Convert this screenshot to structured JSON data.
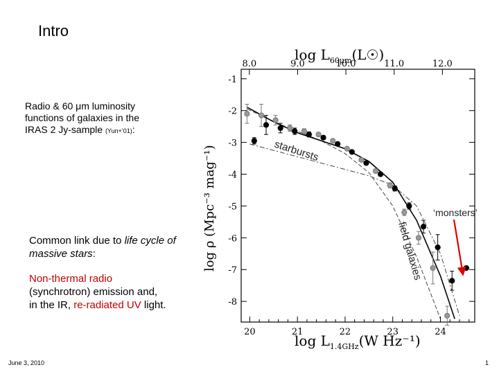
{
  "slide": {
    "title": "Intro",
    "intro_line1": "Radio & 60 μm luminosity",
    "intro_line2": "functions of galaxies in the",
    "intro_line3": "IRAS 2 Jy-sample",
    "intro_cite": "(Yun+’01)",
    "intro_end": ":",
    "common_pre": "Common link due to ",
    "common_em": "life cycle of massive stars",
    "common_post": ":",
    "nt_red1": "Non-thermal radio",
    "nt_mid": "(synchrotron) emission and,",
    "nt_pre": "in the IR, ",
    "nt_red2": "re-radiated UV",
    "nt_post": " light.",
    "footer_date": "June 3, 2010",
    "footer_page": "1",
    "accent_red": "#c00000"
  },
  "chart_data": {
    "type": "scatter",
    "top_xlabel": "log L60μm(L☉)",
    "top_xlabel_main": "log L",
    "top_xlabel_sub": "60μm",
    "top_xlabel_unit": "(L☉)",
    "top_ticks": [
      "8.0",
      "9.0",
      "10.0",
      "11.0",
      "12.0"
    ],
    "top_tick_values": [
      8.0,
      9.0,
      10.0,
      11.0,
      12.0
    ],
    "xlabel_main": "log L",
    "xlabel_sub": "1.4GHz",
    "xlabel_unit": "(W Hz⁻¹)",
    "ylabel": "log ρ (Mpc⁻³ mag⁻¹)",
    "xlim": [
      19.82,
      24.72
    ],
    "ylim": [
      -8.65,
      -0.7
    ],
    "x_ticks": [
      20,
      21,
      22,
      23,
      24
    ],
    "y_ticks": [
      -1,
      -2,
      -3,
      -4,
      -5,
      -6,
      -7,
      -8
    ],
    "x_tick_labels": [
      "20",
      "21",
      "22",
      "23",
      "24"
    ],
    "y_tick_labels": [
      "-1",
      "-2",
      "-3",
      "-4",
      "-5",
      "-6",
      "-7",
      "-8"
    ],
    "annotations": {
      "starbursts": "starbursts",
      "field_galaxies": "field galaxies",
      "monsters": "‘monsters’"
    },
    "series": [
      {
        "marker": "filled",
        "x": [
          20.05,
          20.3,
          20.6,
          20.9,
          21.2,
          21.5,
          21.8,
          22.1,
          22.4,
          22.7,
          23.0,
          23.3,
          23.6,
          23.9,
          24.2,
          24.5
        ],
        "y": [
          -2.95,
          -2.45,
          -2.55,
          -2.65,
          -2.75,
          -2.85,
          -3.05,
          -3.3,
          -3.65,
          -4.0,
          -4.45,
          -5.0,
          -5.65,
          -6.3,
          -7.35,
          -6.95
        ],
        "err": [
          0.1,
          0.3,
          0.15,
          0.1,
          0.08,
          0.06,
          0.05,
          0.05,
          0.05,
          0.06,
          0.08,
          0.1,
          0.2,
          0.4,
          0.3,
          0.0
        ]
      },
      {
        "marker": "open",
        "x": [
          20.0,
          20.3,
          20.6,
          20.9,
          21.2,
          21.5,
          21.8,
          22.1,
          22.4,
          22.7,
          23.0,
          23.3,
          23.6,
          23.9,
          24.2
        ],
        "y": [
          -2.1,
          -2.15,
          -2.3,
          -2.55,
          -2.65,
          -2.75,
          -2.95,
          -3.2,
          -3.55,
          -3.9,
          -4.35,
          -5.2,
          -6.0,
          -6.95,
          -8.45
        ],
        "err": [
          0.3,
          0.35,
          0.15,
          0.1,
          0.08,
          0.06,
          0.05,
          0.05,
          0.05,
          0.06,
          0.08,
          0.1,
          0.2,
          0.5,
          0.3
        ]
      }
    ],
    "fit_total": {
      "x": [
        19.95,
        20.5,
        21.0,
        21.5,
        22.0,
        22.5,
        23.0,
        23.5,
        24.0,
        24.3
      ],
      "y": [
        -1.9,
        -2.35,
        -2.7,
        -2.95,
        -3.2,
        -3.6,
        -4.25,
        -5.45,
        -7.2,
        -8.55
      ]
    },
    "fit_starbursts": {
      "x": [
        20.0,
        21.0,
        22.0,
        22.5,
        23.0,
        23.5,
        24.0,
        24.4
      ],
      "y": [
        -3.05,
        -3.45,
        -3.85,
        -4.05,
        -4.35,
        -5.0,
        -6.5,
        -8.45
      ]
    },
    "fit_field": {
      "x": [
        19.95,
        20.5,
        21.0,
        21.5,
        22.0,
        22.5,
        23.0,
        23.5,
        24.0
      ],
      "y": [
        -1.95,
        -2.35,
        -2.65,
        -2.95,
        -3.35,
        -3.95,
        -5.0,
        -6.6,
        -8.55
      ]
    },
    "marker_color": "#000000",
    "open_marker_color": "#777777",
    "arrow_color": "#e00000"
  }
}
